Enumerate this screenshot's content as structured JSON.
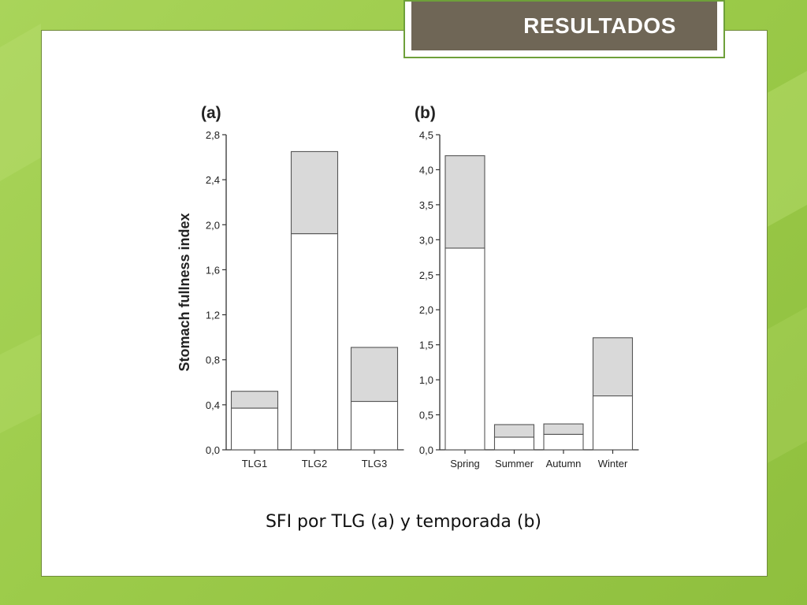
{
  "slide": {
    "title": "RESULTADOS",
    "caption": "SFI por TLG (a) y temporada (b)"
  },
  "colors": {
    "lower_segment": "#ffffff",
    "upper_segment": "#d9d9d9",
    "title_bg": "#6f6656",
    "background": "#9ccb4a"
  },
  "chart_data": [
    {
      "type": "bar",
      "stacked": true,
      "panel_label": "(a)",
      "categories": [
        "TLG1",
        "TLG2",
        "TLG3"
      ],
      "series": [
        {
          "values": [
            0.37,
            1.92,
            0.43
          ]
        },
        {
          "values": [
            0.15,
            0.73,
            0.48
          ]
        }
      ],
      "totals": [
        0.52,
        2.65,
        0.91
      ],
      "ylabel": "Stomach fullness index",
      "ylim": [
        0,
        2.8
      ],
      "yticks": [
        "0,0",
        "0,4",
        "0,8",
        "1,2",
        "1,6",
        "2,0",
        "2,4",
        "2,8"
      ],
      "grid": false
    },
    {
      "type": "bar",
      "stacked": true,
      "panel_label": "(b)",
      "categories": [
        "Spring",
        "Summer",
        "Autumn",
        "Winter"
      ],
      "series": [
        {
          "values": [
            2.88,
            0.18,
            0.22,
            0.77
          ]
        },
        {
          "values": [
            1.32,
            0.18,
            0.15,
            0.83
          ]
        }
      ],
      "totals": [
        4.2,
        0.36,
        0.37,
        1.6
      ],
      "ylim": [
        0,
        4.5
      ],
      "yticks": [
        "0,0",
        "0,5",
        "1,0",
        "1,5",
        "2,0",
        "2,5",
        "3,0",
        "3,5",
        "4,0",
        "4,5"
      ],
      "grid": false
    }
  ]
}
